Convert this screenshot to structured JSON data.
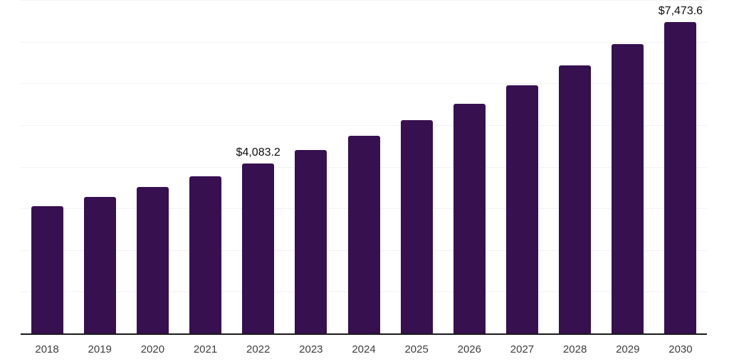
{
  "chart_data": {
    "type": "bar",
    "title": "",
    "xlabel": "",
    "ylabel": "",
    "categories": [
      "2018",
      "2019",
      "2020",
      "2021",
      "2022",
      "2023",
      "2024",
      "2025",
      "2026",
      "2027",
      "2028",
      "2029",
      "2030"
    ],
    "values": [
      3051,
      3275,
      3512,
      3776,
      4083.2,
      4398,
      4739,
      5114,
      5506,
      5949,
      6427,
      6938,
      7473.6
    ],
    "labeled_points": [
      {
        "category": "2022",
        "label": "$4,083.2"
      },
      {
        "category": "2030",
        "label": "$7,473.6"
      }
    ],
    "ylim": [
      0,
      8000
    ],
    "gridline_interval": 1000,
    "grid": "horizontal",
    "legend": "none",
    "bar_color": "#371050",
    "axis_line_color": "#1a1a1a",
    "gridline_color": "#f2f2f2",
    "tick_label_color": "#3d3d3d",
    "value_label_color": "#0d0d0d"
  }
}
